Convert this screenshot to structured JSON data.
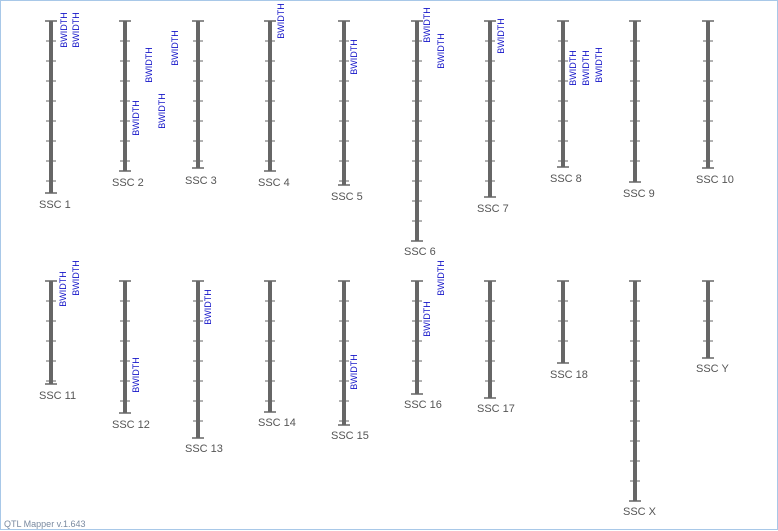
{
  "footer": "QTL Mapper v.1.643",
  "colors": {
    "bar": "#666666",
    "qtl_label": "#1414c8",
    "chrom_label": "#555555",
    "frame": "#a8c8e8"
  },
  "chromosomes": [
    {
      "name": "SSC 1",
      "qtls": [
        "BWIDTH",
        "BWIDTH"
      ]
    },
    {
      "name": "SSC 2",
      "qtls": [
        "BWIDTH",
        "BWIDTH",
        "BWIDTH"
      ]
    },
    {
      "name": "SSC 3",
      "qtls": [
        "BWIDTH"
      ]
    },
    {
      "name": "SSC 4",
      "qtls": [
        "BWIDTH"
      ]
    },
    {
      "name": "SSC 5",
      "qtls": [
        "BWIDTH"
      ]
    },
    {
      "name": "SSC 6",
      "qtls": [
        "BWIDTH",
        "BWIDTH"
      ]
    },
    {
      "name": "SSC 7",
      "qtls": [
        "BWIDTH"
      ]
    },
    {
      "name": "SSC 8",
      "qtls": [
        "BWIDTH",
        "BWIDTH",
        "BWIDTH"
      ]
    },
    {
      "name": "SSC 9",
      "qtls": []
    },
    {
      "name": "SSC 10",
      "qtls": []
    },
    {
      "name": "SSC 11",
      "qtls": [
        "BWIDTH",
        "BWIDTH"
      ]
    },
    {
      "name": "SSC 12",
      "qtls": [
        "BWIDTH"
      ]
    },
    {
      "name": "SSC 13",
      "qtls": [
        "BWIDTH"
      ]
    },
    {
      "name": "SSC 14",
      "qtls": []
    },
    {
      "name": "SSC 15",
      "qtls": [
        "BWIDTH"
      ]
    },
    {
      "name": "SSC 16",
      "qtls": [
        "BWIDTH",
        "BWIDTH"
      ]
    },
    {
      "name": "SSC 17",
      "qtls": []
    },
    {
      "name": "SSC 18",
      "qtls": []
    },
    {
      "name": "SSC X",
      "qtls": []
    },
    {
      "name": "SSC Y",
      "qtls": []
    }
  ]
}
